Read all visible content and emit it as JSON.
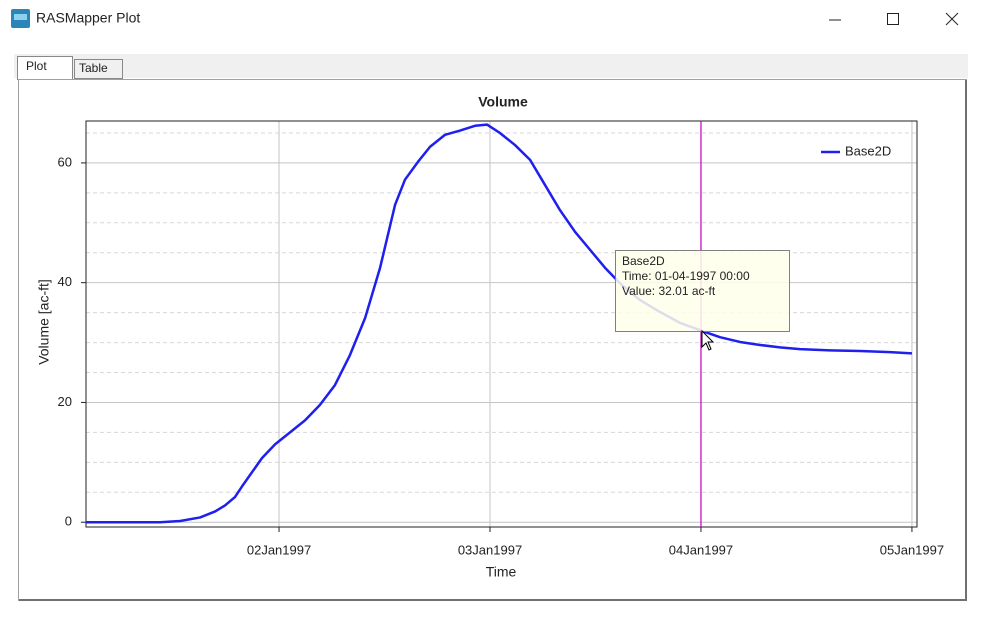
{
  "window": {
    "title": "RASMapper Plot"
  },
  "tabs": [
    "Plot",
    "Table"
  ],
  "tooltip": {
    "lines": [
      "Base2D",
      "Time: 01-04-1997 00:00",
      "Value: 32.01 ac-ft"
    ]
  },
  "chart_data": {
    "type": "line",
    "title": "Volume",
    "x_label": "Time",
    "y_label": "Volume [ac-ft]",
    "x": [
      1.085,
      1.436,
      1.531,
      1.626,
      1.697,
      1.744,
      1.791,
      1.825,
      1.863,
      1.919,
      1.981,
      2.052,
      2.123,
      2.194,
      2.265,
      2.336,
      2.408,
      2.479,
      2.55,
      2.597,
      2.659,
      2.716,
      2.787,
      2.858,
      2.929,
      2.986,
      3.047,
      3.118,
      3.19,
      3.261,
      3.332,
      3.403,
      3.474,
      3.545,
      3.616,
      3.711,
      3.806,
      3.9,
      4.0,
      4.09,
      4.185,
      4.28,
      4.374,
      4.469,
      4.611,
      4.754,
      4.896,
      5.0
    ],
    "series": [
      {
        "name": "Base2D",
        "color": "#1f1fee",
        "values": [
          0,
          0,
          0.2,
          0.8,
          1.8,
          2.8,
          4.2,
          6.0,
          7.9,
          10.7,
          13.0,
          15.0,
          17.0,
          19.6,
          22.9,
          27.9,
          34.1,
          42.5,
          53.0,
          57.2,
          60.2,
          62.7,
          64.7,
          65.4,
          66.2,
          66.4,
          65.0,
          63.0,
          60.5,
          56.3,
          52.1,
          48.5,
          45.5,
          42.5,
          39.9,
          37.1,
          35.1,
          33.3,
          32.01,
          30.9,
          30.1,
          29.6,
          29.2,
          28.9,
          28.7,
          28.6,
          28.4,
          28.2
        ]
      }
    ],
    "xlim": [
      1.085,
      5.024
    ],
    "ylim": [
      -0.8,
      67
    ],
    "xticks": [
      {
        "value": 2,
        "label": "02Jan1997"
      },
      {
        "value": 3,
        "label": "03Jan1997"
      },
      {
        "value": 4,
        "label": "04Jan1997"
      },
      {
        "value": 5,
        "label": "05Jan1997"
      }
    ],
    "yticks": [
      0,
      20,
      40,
      60
    ],
    "y_minor_ticks": [
      5,
      10,
      15,
      25,
      30,
      35,
      45,
      50,
      55,
      65
    ],
    "cursor": {
      "x": 4,
      "color": "#c000c0"
    },
    "grid": true,
    "legend": "top-right"
  }
}
